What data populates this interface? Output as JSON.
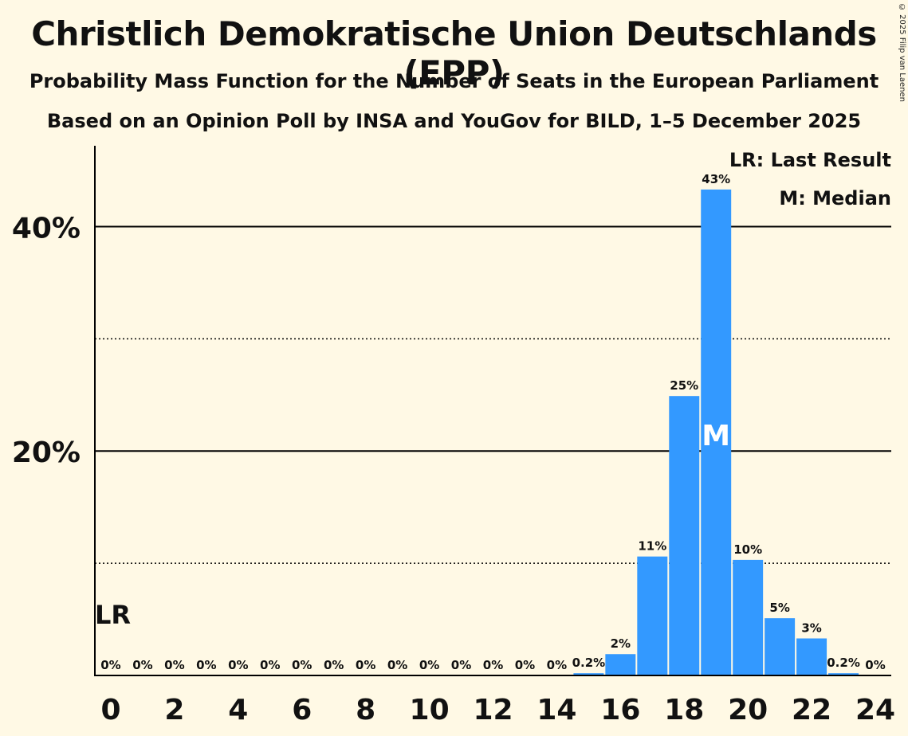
{
  "copyright": "© 2025 Filip van Laenen",
  "legend": {
    "lr": "LR: Last Result",
    "m": "M: Median"
  },
  "markers": {
    "lr_label": "LR",
    "lr_seat": 0,
    "median_label": "M",
    "median_seat": 19
  },
  "colors": {
    "bar": "#3399ff",
    "background": "#fff9e5",
    "axis": "#000000"
  },
  "chart_data": {
    "type": "bar",
    "title": "Christlich Demokratische Union Deutschlands (EPP)",
    "subtitle": "Probability Mass Function for the Number of Seats in the European Parliament",
    "subtitle2": "Based on an Opinion Poll by INSA and YouGov for BILD, 1–5 December 2025",
    "xlabel": "",
    "ylabel": "",
    "categories": [
      0,
      1,
      2,
      3,
      4,
      5,
      6,
      7,
      8,
      9,
      10,
      11,
      12,
      13,
      14,
      15,
      16,
      17,
      18,
      19,
      20,
      21,
      22,
      23,
      24
    ],
    "values": [
      0,
      0,
      0,
      0,
      0,
      0,
      0,
      0,
      0,
      0,
      0,
      0,
      0,
      0,
      0,
      0.2,
      1.9,
      10.6,
      24.9,
      43.3,
      10.3,
      5.1,
      3.3,
      0.2,
      0
    ],
    "value_labels": [
      "0%",
      "0%",
      "0%",
      "0%",
      "0%",
      "0%",
      "0%",
      "0%",
      "0%",
      "0%",
      "0%",
      "0%",
      "0%",
      "0%",
      "0%",
      "0.2%",
      "2%",
      "11%",
      "25%",
      "43%",
      "10%",
      "5%",
      "3%",
      "0.2%",
      "0%"
    ],
    "x_tick_labels": [
      "0",
      "2",
      "4",
      "6",
      "8",
      "10",
      "12",
      "14",
      "16",
      "18",
      "20",
      "22",
      "24"
    ],
    "y_ticks": [
      {
        "value": 10,
        "label": "",
        "style": "dotted"
      },
      {
        "value": 20,
        "label": "20%",
        "style": "solid"
      },
      {
        "value": 30,
        "label": "",
        "style": "dotted"
      },
      {
        "value": 40,
        "label": "40%",
        "style": "solid"
      }
    ],
    "ylim": [
      0,
      47.2
    ]
  }
}
